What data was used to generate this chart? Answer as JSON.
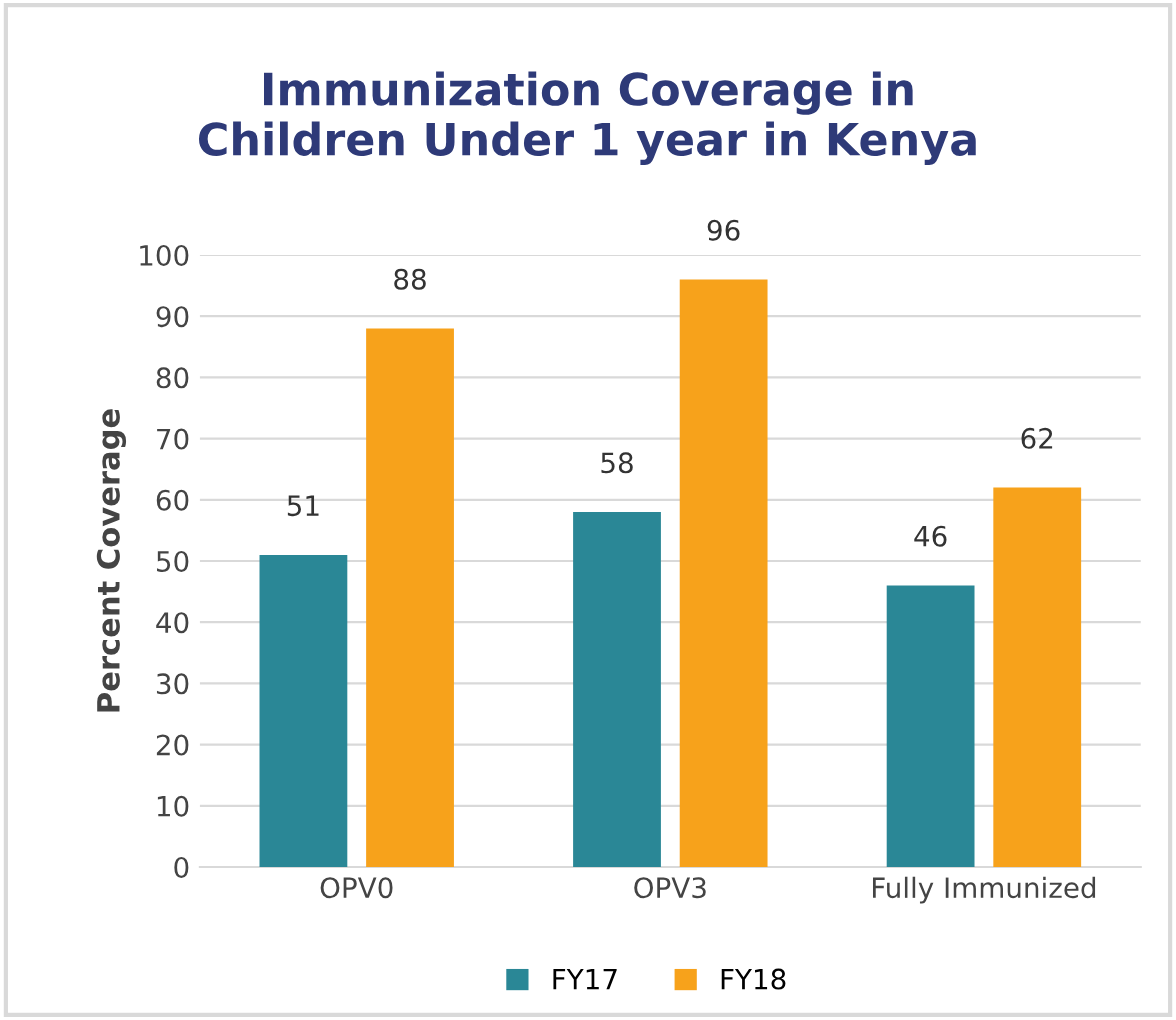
{
  "chart_data": {
    "type": "bar",
    "title": "Immunization Coverage in\nChildren Under 1 year in Kenya",
    "ylabel": "Percent Coverage",
    "categories": [
      "OPV0",
      "OPV3",
      "Fully Immunized"
    ],
    "series": [
      {
        "name": "FY17",
        "color": "#2a8796",
        "values": [
          51,
          58,
          46
        ]
      },
      {
        "name": "FY18",
        "color": "#f7a21b",
        "values": [
          88,
          96,
          62
        ]
      }
    ],
    "ylim": [
      0,
      100
    ],
    "yticks": [
      0,
      10,
      20,
      30,
      40,
      50,
      60,
      70,
      80,
      90,
      100
    ],
    "grid": "y",
    "legend": "bottom",
    "data_labels": true
  }
}
